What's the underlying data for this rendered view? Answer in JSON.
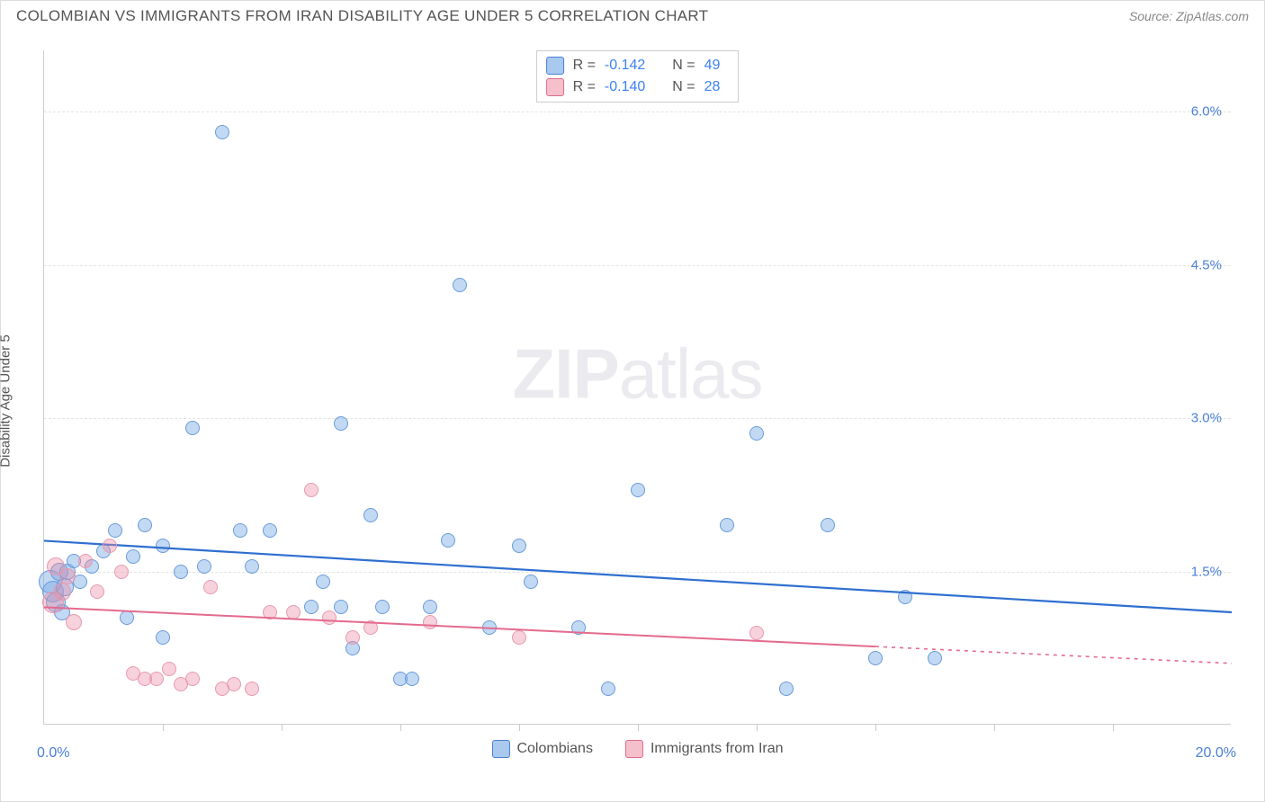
{
  "header": {
    "title": "COLOMBIAN VS IMMIGRANTS FROM IRAN DISABILITY AGE UNDER 5 CORRELATION CHART",
    "source": "Source: ZipAtlas.com"
  },
  "y_axis_label": "Disability Age Under 5",
  "watermark": {
    "zip": "ZIP",
    "atlas": "atlas"
  },
  "chart": {
    "type": "scatter",
    "xlim": [
      0,
      20
    ],
    "ylim": [
      0,
      6.6
    ],
    "x_min_label": "0.0%",
    "x_max_label": "20.0%",
    "x_ticks": [
      2,
      4,
      6,
      8,
      10,
      12,
      14,
      16,
      18
    ],
    "y_ticks": [
      {
        "v": 1.5,
        "label": "1.5%"
      },
      {
        "v": 3.0,
        "label": "3.0%"
      },
      {
        "v": 4.5,
        "label": "4.5%"
      },
      {
        "v": 6.0,
        "label": "6.0%"
      }
    ],
    "grid_color": "#e4e4e4",
    "background_color": "#ffffff",
    "series": [
      {
        "id": "colombians",
        "name": "Colombians",
        "swatch_fill": "#a9c9ee",
        "swatch_stroke": "#4a7fd8",
        "marker_fill": "rgba(120,170,230,0.45)",
        "marker_stroke": "#6a9bd8",
        "marker_size": 16,
        "r_label": "R =",
        "r_value": "-0.142",
        "n_label": "N =",
        "n_value": "49",
        "regression": {
          "y_at_xmin": 1.8,
          "y_at_xmax": 1.1,
          "stroke": "#2f6fd0",
          "width": 2.2,
          "dash": "none",
          "extent": 20
        },
        "points": [
          {
            "x": 0.1,
            "y": 1.4,
            "r": 13
          },
          {
            "x": 0.15,
            "y": 1.3,
            "r": 12
          },
          {
            "x": 0.2,
            "y": 1.2,
            "r": 11
          },
          {
            "x": 0.25,
            "y": 1.5,
            "r": 10
          },
          {
            "x": 0.3,
            "y": 1.1,
            "r": 9
          },
          {
            "x": 0.35,
            "y": 1.35,
            "r": 10
          },
          {
            "x": 0.4,
            "y": 1.5,
            "r": 9
          },
          {
            "x": 0.5,
            "y": 1.6,
            "r": 8
          },
          {
            "x": 0.6,
            "y": 1.4,
            "r": 8
          },
          {
            "x": 0.8,
            "y": 1.55,
            "r": 8
          },
          {
            "x": 1.0,
            "y": 1.7,
            "r": 8
          },
          {
            "x": 1.2,
            "y": 1.9,
            "r": 8
          },
          {
            "x": 1.4,
            "y": 1.05,
            "r": 8
          },
          {
            "x": 1.5,
            "y": 1.65,
            "r": 8
          },
          {
            "x": 1.7,
            "y": 1.95,
            "r": 8
          },
          {
            "x": 2.0,
            "y": 1.75,
            "r": 8
          },
          {
            "x": 2.0,
            "y": 0.85,
            "r": 8
          },
          {
            "x": 2.3,
            "y": 1.5,
            "r": 8
          },
          {
            "x": 2.5,
            "y": 2.9,
            "r": 8
          },
          {
            "x": 2.7,
            "y": 1.55,
            "r": 8
          },
          {
            "x": 3.0,
            "y": 5.8,
            "r": 8
          },
          {
            "x": 3.3,
            "y": 1.9,
            "r": 8
          },
          {
            "x": 3.5,
            "y": 1.55,
            "r": 8
          },
          {
            "x": 3.8,
            "y": 1.9,
            "r": 8
          },
          {
            "x": 4.5,
            "y": 1.15,
            "r": 8
          },
          {
            "x": 4.7,
            "y": 1.4,
            "r": 8
          },
          {
            "x": 5.0,
            "y": 1.15,
            "r": 8
          },
          {
            "x": 5.0,
            "y": 2.95,
            "r": 8
          },
          {
            "x": 5.2,
            "y": 0.75,
            "r": 8
          },
          {
            "x": 5.5,
            "y": 2.05,
            "r": 8
          },
          {
            "x": 5.7,
            "y": 1.15,
            "r": 8
          },
          {
            "x": 6.0,
            "y": 0.45,
            "r": 8
          },
          {
            "x": 6.2,
            "y": 0.45,
            "r": 8
          },
          {
            "x": 6.5,
            "y": 1.15,
            "r": 8
          },
          {
            "x": 6.8,
            "y": 1.8,
            "r": 8
          },
          {
            "x": 7.0,
            "y": 4.3,
            "r": 8
          },
          {
            "x": 7.5,
            "y": 0.95,
            "r": 8
          },
          {
            "x": 8.0,
            "y": 1.75,
            "r": 8
          },
          {
            "x": 8.2,
            "y": 1.4,
            "r": 8
          },
          {
            "x": 9.0,
            "y": 0.95,
            "r": 8
          },
          {
            "x": 9.5,
            "y": 0.35,
            "r": 8
          },
          {
            "x": 10.0,
            "y": 2.3,
            "r": 8
          },
          {
            "x": 11.5,
            "y": 1.95,
            "r": 8
          },
          {
            "x": 12.0,
            "y": 2.85,
            "r": 8
          },
          {
            "x": 12.5,
            "y": 0.35,
            "r": 8
          },
          {
            "x": 13.2,
            "y": 1.95,
            "r": 8
          },
          {
            "x": 14.0,
            "y": 0.65,
            "r": 8
          },
          {
            "x": 14.5,
            "y": 1.25,
            "r": 8
          },
          {
            "x": 15.0,
            "y": 0.65,
            "r": 8
          }
        ]
      },
      {
        "id": "iran",
        "name": "Immigrants from Iran",
        "swatch_fill": "#f5c0cc",
        "swatch_stroke": "#e06a8a",
        "marker_fill": "rgba(235,140,165,0.40)",
        "marker_stroke": "#e79ab0",
        "marker_size": 16,
        "r_label": "R =",
        "r_value": "-0.140",
        "n_label": "N =",
        "n_value": "28",
        "regression": {
          "y_at_xmin": 1.15,
          "y_at_xmax": 0.6,
          "stroke": "#e46a8e",
          "width": 2,
          "dash": "dashed-after",
          "extent": 14,
          "extent_full": 20
        },
        "points": [
          {
            "x": 0.15,
            "y": 1.2,
            "r": 12
          },
          {
            "x": 0.2,
            "y": 1.55,
            "r": 10
          },
          {
            "x": 0.3,
            "y": 1.3,
            "r": 10
          },
          {
            "x": 0.4,
            "y": 1.45,
            "r": 9
          },
          {
            "x": 0.5,
            "y": 1.0,
            "r": 9
          },
          {
            "x": 0.7,
            "y": 1.6,
            "r": 8
          },
          {
            "x": 0.9,
            "y": 1.3,
            "r": 8
          },
          {
            "x": 1.1,
            "y": 1.75,
            "r": 8
          },
          {
            "x": 1.3,
            "y": 1.5,
            "r": 8
          },
          {
            "x": 1.5,
            "y": 0.5,
            "r": 8
          },
          {
            "x": 1.7,
            "y": 0.45,
            "r": 8
          },
          {
            "x": 1.9,
            "y": 0.45,
            "r": 8
          },
          {
            "x": 2.1,
            "y": 0.55,
            "r": 8
          },
          {
            "x": 2.3,
            "y": 0.4,
            "r": 8
          },
          {
            "x": 2.5,
            "y": 0.45,
            "r": 8
          },
          {
            "x": 2.8,
            "y": 1.35,
            "r": 8
          },
          {
            "x": 3.0,
            "y": 0.35,
            "r": 8
          },
          {
            "x": 3.2,
            "y": 0.4,
            "r": 8
          },
          {
            "x": 3.5,
            "y": 0.35,
            "r": 8
          },
          {
            "x": 3.8,
            "y": 1.1,
            "r": 8
          },
          {
            "x": 4.2,
            "y": 1.1,
            "r": 8
          },
          {
            "x": 4.5,
            "y": 2.3,
            "r": 8
          },
          {
            "x": 4.8,
            "y": 1.05,
            "r": 8
          },
          {
            "x": 5.2,
            "y": 0.85,
            "r": 8
          },
          {
            "x": 5.5,
            "y": 0.95,
            "r": 8
          },
          {
            "x": 6.5,
            "y": 1.0,
            "r": 8
          },
          {
            "x": 8.0,
            "y": 0.85,
            "r": 8
          },
          {
            "x": 12.0,
            "y": 0.9,
            "r": 8
          }
        ]
      }
    ]
  },
  "bottom_legend": [
    {
      "swatch_fill": "#a9c9ee",
      "swatch_stroke": "#4a7fd8",
      "label": "Colombians"
    },
    {
      "swatch_fill": "#f5c0cc",
      "swatch_stroke": "#e06a8a",
      "label": "Immigrants from Iran"
    }
  ]
}
